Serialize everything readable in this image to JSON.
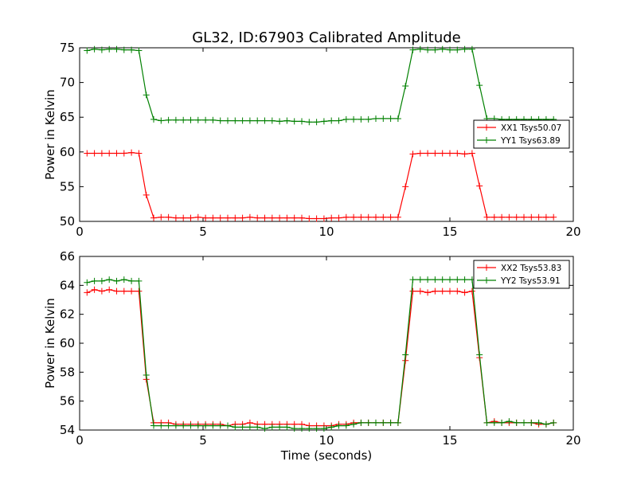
{
  "figure": {
    "title": "GL32, ID:67903 Calibrated Amplitude"
  },
  "chart_data": [
    {
      "type": "line",
      "title": "GL32, ID:67903 Calibrated Amplitude",
      "xlabel": "",
      "ylabel": "Power in Kelvin",
      "xlim": [
        0,
        20
      ],
      "ylim": [
        50,
        75
      ],
      "xticks": [
        0,
        5,
        10,
        15,
        20
      ],
      "yticks": [
        50,
        55,
        60,
        65,
        70,
        75
      ],
      "grid": false,
      "legend_position": "right",
      "series": [
        {
          "name": "XX1 Tsys50.07",
          "color": "#ff0000",
          "x": [
            0.3,
            0.6,
            0.9,
            1.2,
            1.5,
            1.8,
            2.1,
            2.4,
            2.7,
            3.0,
            3.3,
            3.6,
            3.9,
            4.2,
            4.5,
            4.8,
            5.1,
            5.4,
            5.7,
            6.0,
            6.3,
            6.6,
            6.9,
            7.2,
            7.5,
            7.8,
            8.1,
            8.4,
            8.7,
            9.0,
            9.3,
            9.6,
            9.9,
            10.2,
            10.5,
            10.8,
            11.1,
            11.4,
            11.7,
            12.0,
            12.3,
            12.6,
            12.9,
            13.2,
            13.5,
            13.8,
            14.1,
            14.4,
            14.7,
            15.0,
            15.3,
            15.6,
            15.9,
            16.2,
            16.5,
            16.8,
            17.1,
            17.4,
            17.7,
            18.0,
            18.3,
            18.6,
            18.9,
            19.2
          ],
          "y": [
            59.8,
            59.8,
            59.8,
            59.8,
            59.8,
            59.8,
            59.9,
            59.8,
            53.8,
            50.5,
            50.6,
            50.6,
            50.5,
            50.5,
            50.5,
            50.6,
            50.5,
            50.5,
            50.5,
            50.5,
            50.5,
            50.5,
            50.6,
            50.5,
            50.5,
            50.5,
            50.5,
            50.5,
            50.5,
            50.5,
            50.4,
            50.4,
            50.4,
            50.5,
            50.5,
            50.6,
            50.6,
            50.6,
            50.6,
            50.6,
            50.6,
            50.6,
            50.6,
            55.0,
            59.7,
            59.8,
            59.8,
            59.8,
            59.8,
            59.8,
            59.8,
            59.7,
            59.8,
            55.1,
            50.6,
            50.6,
            50.6,
            50.6,
            50.6,
            50.6,
            50.6,
            50.6,
            50.6,
            50.6
          ]
        },
        {
          "name": "YY1 Tsys63.89",
          "color": "#008000",
          "x": [
            0.3,
            0.6,
            0.9,
            1.2,
            1.5,
            1.8,
            2.1,
            2.4,
            2.7,
            3.0,
            3.3,
            3.6,
            3.9,
            4.2,
            4.5,
            4.8,
            5.1,
            5.4,
            5.7,
            6.0,
            6.3,
            6.6,
            6.9,
            7.2,
            7.5,
            7.8,
            8.1,
            8.4,
            8.7,
            9.0,
            9.3,
            9.6,
            9.9,
            10.2,
            10.5,
            10.8,
            11.1,
            11.4,
            11.7,
            12.0,
            12.3,
            12.6,
            12.9,
            13.2,
            13.5,
            13.8,
            14.1,
            14.4,
            14.7,
            15.0,
            15.3,
            15.6,
            15.9,
            16.2,
            16.5,
            16.8,
            17.1,
            17.4,
            17.7,
            18.0,
            18.3,
            18.6,
            18.9,
            19.2
          ],
          "y": [
            74.6,
            74.8,
            74.7,
            74.8,
            74.8,
            74.7,
            74.7,
            74.6,
            68.2,
            64.7,
            64.5,
            64.6,
            64.6,
            64.6,
            64.6,
            64.6,
            64.6,
            64.6,
            64.5,
            64.5,
            64.5,
            64.5,
            64.5,
            64.5,
            64.5,
            64.5,
            64.4,
            64.5,
            64.4,
            64.4,
            64.3,
            64.3,
            64.4,
            64.5,
            64.5,
            64.7,
            64.7,
            64.7,
            64.7,
            64.8,
            64.8,
            64.8,
            64.8,
            69.5,
            74.7,
            74.8,
            74.7,
            74.7,
            74.8,
            74.7,
            74.7,
            74.8,
            74.8,
            69.6,
            64.8,
            64.8,
            64.7,
            64.7,
            64.7,
            64.7,
            64.7,
            64.7,
            64.7,
            64.7
          ]
        }
      ]
    },
    {
      "type": "line",
      "title": "",
      "xlabel": "Time (seconds)",
      "ylabel": "Power in Kelvin",
      "xlim": [
        0,
        20
      ],
      "ylim": [
        54,
        66
      ],
      "xticks": [
        0,
        5,
        10,
        15,
        20
      ],
      "yticks": [
        54,
        56,
        58,
        60,
        62,
        64,
        66
      ],
      "grid": false,
      "legend_position": "top-right",
      "series": [
        {
          "name": "XX2 Tsys53.83",
          "color": "#ff0000",
          "x": [
            0.3,
            0.6,
            0.9,
            1.2,
            1.5,
            1.8,
            2.1,
            2.4,
            2.7,
            3.0,
            3.3,
            3.6,
            3.9,
            4.2,
            4.5,
            4.8,
            5.1,
            5.4,
            5.7,
            6.0,
            6.3,
            6.6,
            6.9,
            7.2,
            7.5,
            7.8,
            8.1,
            8.4,
            8.7,
            9.0,
            9.3,
            9.6,
            9.9,
            10.2,
            10.5,
            10.8,
            11.1,
            11.4,
            11.7,
            12.0,
            12.3,
            12.6,
            12.9,
            13.2,
            13.5,
            13.8,
            14.1,
            14.4,
            14.7,
            15.0,
            15.3,
            15.6,
            15.9,
            16.2,
            16.5,
            16.8,
            17.1,
            17.4,
            17.7,
            18.0,
            18.3,
            18.6,
            18.9,
            19.2
          ],
          "y": [
            63.5,
            63.7,
            63.6,
            63.7,
            63.6,
            63.6,
            63.6,
            63.6,
            57.5,
            54.5,
            54.5,
            54.5,
            54.4,
            54.4,
            54.4,
            54.4,
            54.4,
            54.4,
            54.4,
            54.3,
            54.4,
            54.4,
            54.5,
            54.4,
            54.4,
            54.4,
            54.4,
            54.4,
            54.4,
            54.4,
            54.3,
            54.3,
            54.3,
            54.3,
            54.4,
            54.4,
            54.5,
            54.5,
            54.5,
            54.5,
            54.5,
            54.5,
            54.5,
            58.8,
            63.6,
            63.6,
            63.5,
            63.6,
            63.6,
            63.6,
            63.6,
            63.5,
            63.6,
            59.0,
            54.5,
            54.6,
            54.5,
            54.5,
            54.5,
            54.5,
            54.5,
            54.4,
            54.4,
            54.5
          ]
        },
        {
          "name": "YY2 Tsys53.91",
          "color": "#008000",
          "x": [
            0.3,
            0.6,
            0.9,
            1.2,
            1.5,
            1.8,
            2.1,
            2.4,
            2.7,
            3.0,
            3.3,
            3.6,
            3.9,
            4.2,
            4.5,
            4.8,
            5.1,
            5.4,
            5.7,
            6.0,
            6.3,
            6.6,
            6.9,
            7.2,
            7.5,
            7.8,
            8.1,
            8.4,
            8.7,
            9.0,
            9.3,
            9.6,
            9.9,
            10.2,
            10.5,
            10.8,
            11.1,
            11.4,
            11.7,
            12.0,
            12.3,
            12.6,
            12.9,
            13.2,
            13.5,
            13.8,
            14.1,
            14.4,
            14.7,
            15.0,
            15.3,
            15.6,
            15.9,
            16.2,
            16.5,
            16.8,
            17.1,
            17.4,
            17.7,
            18.0,
            18.3,
            18.6,
            18.9,
            19.2
          ],
          "y": [
            64.2,
            64.3,
            64.3,
            64.4,
            64.3,
            64.4,
            64.3,
            64.3,
            57.8,
            54.3,
            54.3,
            54.3,
            54.3,
            54.3,
            54.3,
            54.3,
            54.3,
            54.3,
            54.3,
            54.3,
            54.2,
            54.2,
            54.2,
            54.2,
            54.1,
            54.2,
            54.2,
            54.2,
            54.1,
            54.1,
            54.1,
            54.1,
            54.1,
            54.2,
            54.3,
            54.3,
            54.4,
            54.5,
            54.5,
            54.5,
            54.5,
            54.5,
            54.5,
            59.2,
            64.4,
            64.4,
            64.4,
            64.4,
            64.4,
            64.4,
            64.4,
            64.4,
            64.4,
            59.2,
            54.5,
            54.5,
            54.5,
            54.6,
            54.5,
            54.5,
            54.5,
            54.5,
            54.4,
            54.5
          ]
        }
      ]
    }
  ]
}
